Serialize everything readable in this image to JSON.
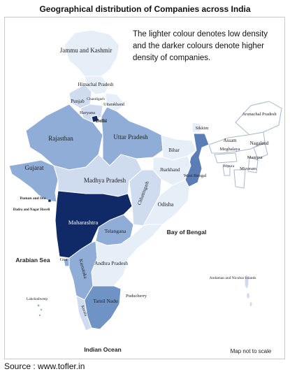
{
  "title": "Geographical distribution of Companies across India",
  "legend_note": "The lighter colour denotes low density and the darker colours denote higher density of companies.",
  "source": "Source : www.tofler.in",
  "map_note": "Map not to scale",
  "density_colors": {
    "lowest": "#e6eef8",
    "low": "#cfdcef",
    "medium_low": "#a9c1e3",
    "medium": "#8fadd6",
    "high": "#6f93c4",
    "higher": "#5a7db6",
    "highest": "#0f2a66"
  },
  "regions": {
    "jk": "Jammu and Kashmir",
    "hp": "Himachal Pradesh",
    "chandigarh": "Chandigarh",
    "punjab": "Punjab",
    "uttarakhand": "Uttarakhand",
    "haryana": "Haryana",
    "delhi": "Delhi",
    "rajasthan": "Rajasthan",
    "up": "Uttar Pradesh",
    "sikkim": "Sikkim",
    "arunachal": "Arunachal Pradesh",
    "assam": "Assam",
    "nagaland": "Nagaland",
    "meghalaya": "Meghalaya",
    "manipur": "Manipur",
    "tripura": "Tripura",
    "mizoram": "Mizoram",
    "bihar": "Bihar",
    "gujarat": "Gujarat",
    "mp": "Madhya Pradesh",
    "jharkhand": "Jharkhand",
    "wb": "West Bengal",
    "chhattisgarh": "Chhattisgarh",
    "odisha": "Odisha",
    "daman": "Daman and Diu",
    "dnh": "Dadra and Nagar Haveli",
    "maharashtra": "Maharashtra",
    "telangana": "Telangana",
    "goa": "Goa",
    "karnataka": "Karnataka",
    "ap": "Andhra Pradesh",
    "tn": "Tamil Nadu",
    "kerala": "Kerala",
    "puducherry": "Puducherry",
    "lakshadweep": "Lakshadweep",
    "andaman": "Andaman and Nicobar Islands"
  },
  "water": {
    "arabian_sea": "Arabian Sea",
    "bay_of_bengal": "Bay of Bengal",
    "indian_ocean": "Indian Ocean"
  }
}
